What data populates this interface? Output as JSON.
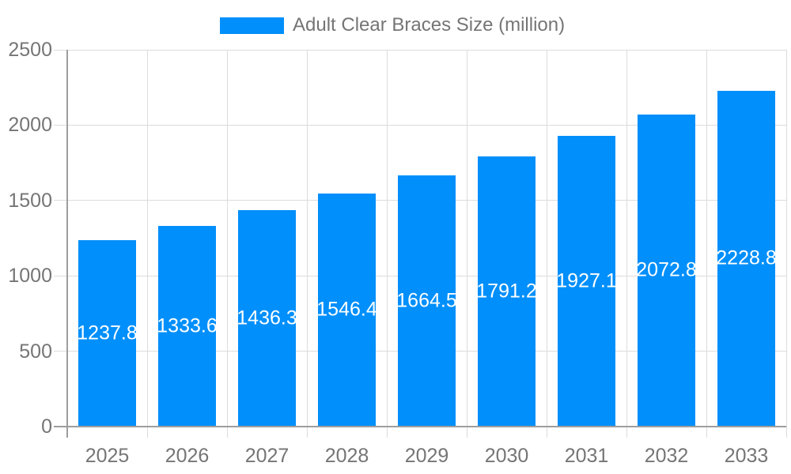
{
  "legend": {
    "label": "Adult Clear Braces Size (million)"
  },
  "chart_data": {
    "type": "bar",
    "title": "Adult Clear Braces Size (million)",
    "series_name": "Adult Clear Braces Size (million)",
    "categories": [
      "2025",
      "2026",
      "2027",
      "2028",
      "2029",
      "2030",
      "2031",
      "2032",
      "2033"
    ],
    "values": [
      1237.8,
      1333.6,
      1436.3,
      1546.4,
      1664.5,
      1791.2,
      1927.1,
      2072.8,
      2228.8
    ],
    "value_labels": [
      "1237.8",
      "1333.6",
      "1436.3",
      "1546.4",
      "1664.5",
      "1791.2",
      "1927.1",
      "2072.8",
      "2228.8"
    ],
    "xlabel": "",
    "ylabel": "",
    "ylim": [
      0,
      2500
    ],
    "yticks": [
      0,
      500,
      1000,
      1500,
      2000,
      2500
    ],
    "grid": true,
    "legend_position": "top",
    "colors": {
      "bar": "#008FFB",
      "bar_label": "#FFFFFF",
      "axis_text": "#757575",
      "gridline": "#DCDCDC",
      "axis_line": "#9E9E9E",
      "background": "#FFFFFF"
    }
  }
}
